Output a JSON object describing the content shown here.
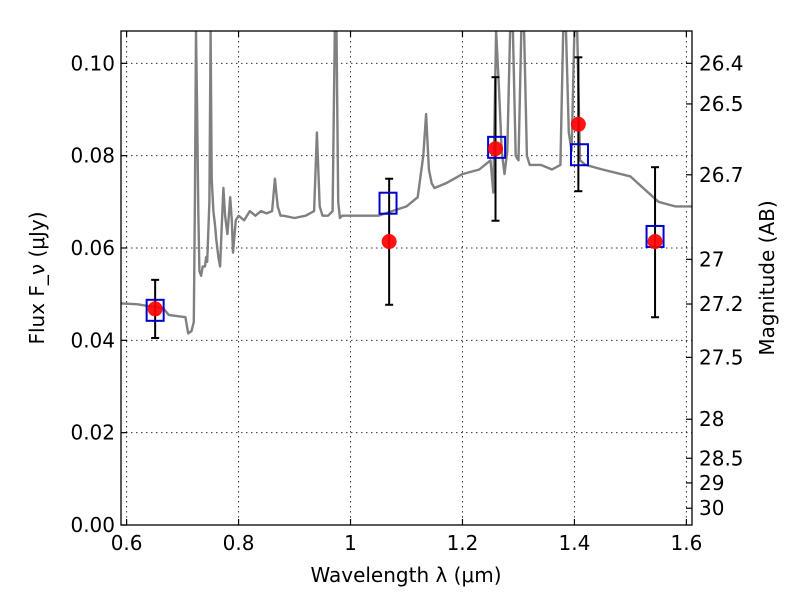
{
  "chart_data": {
    "type": "line",
    "xlabel": "Wavelength λ (μm)",
    "ylabel": "Flux F_ν (μJy)",
    "y2label": "Magnitude (AB)",
    "xlim": [
      0.59,
      1.61
    ],
    "ylim": [
      0.0,
      0.107
    ],
    "grid": true,
    "x_ticks": [
      0.6,
      0.8,
      1.0,
      1.2,
      1.4,
      1.6
    ],
    "x_tick_labels": [
      "0.6",
      "0.8",
      "1",
      "1.2",
      "1.4",
      "1.6"
    ],
    "y_ticks": [
      0.0,
      0.02,
      0.04,
      0.06,
      0.08,
      0.1
    ],
    "y_tick_labels": [
      "0.00",
      "0.02",
      "0.04",
      "0.06",
      "0.08",
      "0.10"
    ],
    "mag_ticks": [
      26.4,
      26.5,
      26.7,
      27,
      27.2,
      27.5,
      28,
      28.5,
      29,
      30
    ],
    "mag_tick_labels": [
      "26.4",
      "26.5",
      "26.7",
      "27",
      "27.2",
      "27.5",
      "28",
      "28.5",
      "29",
      "30"
    ],
    "series": [
      {
        "kind": "line",
        "color": "#808080",
        "x": [
          0.59,
          0.62,
          0.64,
          0.665,
          0.672,
          0.675,
          0.705,
          0.71,
          0.716,
          0.72,
          0.722,
          0.724,
          0.726,
          0.728,
          0.73,
          0.733,
          0.736,
          0.74,
          0.742,
          0.744,
          0.748,
          0.75,
          0.752,
          0.755,
          0.758,
          0.76,
          0.764,
          0.767,
          0.77,
          0.773,
          0.776,
          0.78,
          0.782,
          0.785,
          0.788,
          0.79,
          0.795,
          0.8,
          0.81,
          0.82,
          0.83,
          0.84,
          0.85,
          0.86,
          0.865,
          0.87,
          0.875,
          0.88,
          0.9,
          0.92,
          0.935,
          0.94,
          0.945,
          0.95,
          0.96,
          0.968,
          0.972,
          0.975,
          0.978,
          0.981,
          0.985,
          1.0,
          1.05,
          1.1,
          1.12,
          1.13,
          1.135,
          1.14,
          1.145,
          1.15,
          1.17,
          1.2,
          1.23,
          1.25,
          1.255,
          1.26,
          1.265,
          1.27,
          1.275,
          1.28,
          1.285,
          1.29,
          1.295,
          1.3,
          1.305,
          1.31,
          1.315,
          1.32,
          1.34,
          1.36,
          1.375,
          1.38,
          1.385,
          1.39,
          1.395,
          1.4,
          1.405,
          1.41,
          1.42,
          1.45,
          1.5,
          1.55,
          1.58,
          1.59,
          1.6,
          1.61
        ],
        "y": [
          0.048,
          0.0478,
          0.0474,
          0.047,
          0.046,
          0.0455,
          0.045,
          0.0415,
          0.042,
          0.044,
          0.07,
          0.107,
          0.09,
          0.068,
          0.055,
          0.054,
          0.056,
          0.056,
          0.058,
          0.057,
          0.07,
          0.107,
          0.075,
          0.068,
          0.065,
          0.062,
          0.058,
          0.056,
          0.065,
          0.073,
          0.067,
          0.063,
          0.066,
          0.071,
          0.066,
          0.059,
          0.066,
          0.067,
          0.066,
          0.068,
          0.067,
          0.068,
          0.0675,
          0.068,
          0.075,
          0.069,
          0.067,
          0.067,
          0.0665,
          0.067,
          0.068,
          0.085,
          0.069,
          0.067,
          0.067,
          0.068,
          0.107,
          0.107,
          0.07,
          0.0665,
          0.067,
          0.067,
          0.067,
          0.069,
          0.071,
          0.08,
          0.089,
          0.077,
          0.074,
          0.073,
          0.074,
          0.076,
          0.077,
          0.079,
          0.072,
          0.107,
          0.095,
          0.081,
          0.076,
          0.081,
          0.107,
          0.107,
          0.08,
          0.079,
          0.107,
          0.107,
          0.08,
          0.078,
          0.078,
          0.077,
          0.078,
          0.107,
          0.107,
          0.085,
          0.081,
          0.107,
          0.107,
          0.079,
          0.078,
          0.077,
          0.0755,
          0.07,
          0.069,
          0.069,
          0.069,
          0.069
        ]
      },
      {
        "name": "",
        "kind": "points-square",
        "color": "#0000cc",
        "x": [
          0.651,
          1.067,
          1.261,
          1.409,
          1.544
        ],
        "y": [
          0.0465,
          0.0697,
          0.0818,
          0.0802,
          0.0625
        ]
      },
      {
        "name": "",
        "kind": "points-circle",
        "color": "#ff0000",
        "x": [
          0.651,
          1.069,
          1.259,
          1.407,
          1.544
        ],
        "y": [
          0.0468,
          0.0614,
          0.0815,
          0.0868,
          0.0614
        ],
        "yerr_low": [
          0.0405,
          0.0477,
          0.0659,
          0.0723,
          0.045
        ],
        "yerr_high": [
          0.0531,
          0.075,
          0.097,
          0.1013,
          0.0775
        ]
      }
    ]
  }
}
